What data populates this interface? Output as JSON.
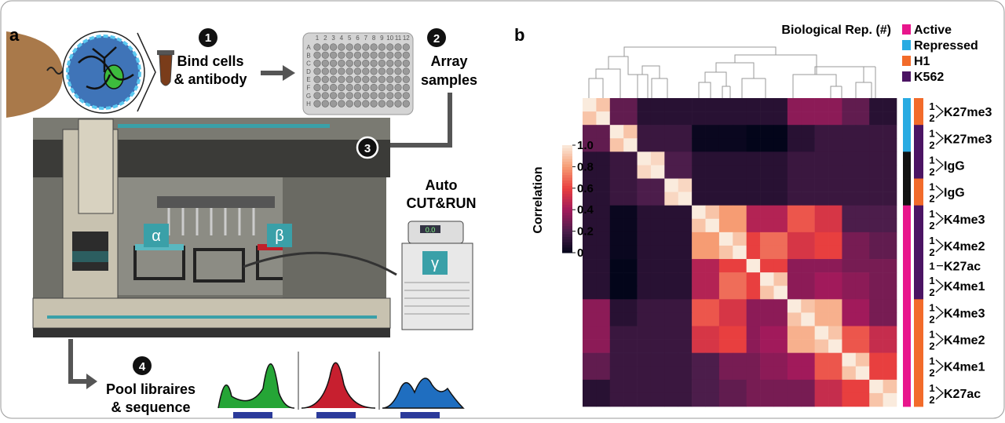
{
  "panel_a": {
    "label": "a",
    "step1": {
      "num": "1",
      "lines": [
        "Bind cells",
        "& antibody"
      ]
    },
    "step2": {
      "num": "2",
      "lines": [
        "Array",
        "samples"
      ]
    },
    "step3": {
      "num": "3",
      "lines": [
        "Auto",
        "CUT&RUN"
      ]
    },
    "step4": {
      "num": "4",
      "lines": [
        "Pool libraires",
        "& sequence"
      ]
    },
    "plate": {
      "columns": [
        "1",
        "2",
        "3",
        "4",
        "5",
        "6",
        "7",
        "8",
        "9",
        "10",
        "11",
        "12"
      ],
      "rows": [
        "A",
        "B",
        "C",
        "D",
        "E",
        "F",
        "G",
        "H"
      ]
    },
    "modules": [
      "α",
      "β",
      "γ"
    ],
    "display": "0.0"
  },
  "chart_data": {
    "type": "heatmap",
    "panel_label": "b",
    "legend_title": "Biological Rep. (#)",
    "colorbar_label": "Correlation",
    "clim": [
      0,
      1
    ],
    "cticks": [
      {
        "value": 1,
        "label": "1.0"
      },
      0.8,
      0.6,
      0.4,
      0.2,
      0
    ],
    "legend": [
      {
        "name": "Active",
        "color": "#e8168c"
      },
      {
        "name": "Repressed",
        "color": "#29abe2"
      },
      {
        "name": "H1",
        "color": "#f26b2a"
      },
      {
        "name": "K562",
        "color": "#4b1463"
      }
    ],
    "row_groups": [
      {
        "name": "K27me3",
        "reps": [
          "1",
          "2"
        ]
      },
      {
        "name": "K27me3",
        "reps": [
          "1",
          "2"
        ]
      },
      {
        "name": "IgG",
        "reps": [
          "1",
          "2"
        ]
      },
      {
        "name": "IgG",
        "reps": [
          "1",
          "2"
        ]
      },
      {
        "name": "K4me3",
        "reps": [
          "1",
          "2"
        ]
      },
      {
        "name": "K4me2",
        "reps": [
          "1",
          "2"
        ]
      },
      {
        "name": "K27ac",
        "reps": [
          "1"
        ]
      },
      {
        "name": "K4me1",
        "reps": [
          "1",
          "2"
        ]
      },
      {
        "name": "K4me3",
        "reps": [
          "1",
          "2"
        ]
      },
      {
        "name": "K4me2",
        "reps": [
          "1",
          "2"
        ]
      },
      {
        "name": "K4me1",
        "reps": [
          "1",
          "2"
        ]
      },
      {
        "name": "K27ac",
        "reps": [
          "1",
          "2"
        ]
      }
    ],
    "activity_track": [
      "Repressed",
      "Repressed",
      "Repressed",
      "Repressed",
      null,
      null,
      null,
      null,
      "Active",
      "Active",
      "Active",
      "Active",
      "Active",
      "Active",
      "Active",
      "Active",
      "Active",
      "Active",
      "Active",
      "Active",
      "Active",
      "Active",
      "Active"
    ],
    "cell_track": [
      "H1",
      "H1",
      "K562",
      "K562",
      "K562",
      "K562",
      "H1",
      "H1",
      "K562",
      "K562",
      "K562",
      "K562",
      "K562",
      "K562",
      "K562",
      "H1",
      "H1",
      "H1",
      "H1",
      "H1",
      "H1",
      "H1",
      "H1"
    ],
    "values": [
      [
        1,
        0.9,
        0.25,
        0.25,
        0.1,
        0.1,
        0.1,
        0.1,
        0.1,
        0.1,
        0.1,
        0.1,
        0.1,
        0.1,
        0.1,
        0.35,
        0.35,
        0.35,
        0.35,
        0.25,
        0.25,
        0.1,
        0.1
      ],
      [
        0.9,
        1,
        0.25,
        0.25,
        0.1,
        0.1,
        0.1,
        0.1,
        0.1,
        0.1,
        0.1,
        0.1,
        0.1,
        0.1,
        0.1,
        0.35,
        0.35,
        0.35,
        0.35,
        0.25,
        0.25,
        0.1,
        0.1
      ],
      [
        0.25,
        0.25,
        1,
        0.9,
        0.15,
        0.15,
        0.15,
        0.15,
        0.02,
        0.02,
        0.02,
        0.02,
        0,
        0,
        0,
        0.1,
        0.1,
        0.15,
        0.15,
        0.15,
        0.15,
        0.15,
        0.15
      ],
      [
        0.25,
        0.25,
        0.9,
        1,
        0.15,
        0.15,
        0.15,
        0.15,
        0.02,
        0.02,
        0.02,
        0.02,
        0,
        0,
        0,
        0.1,
        0.1,
        0.15,
        0.15,
        0.15,
        0.15,
        0.15,
        0.15
      ],
      [
        0.1,
        0.1,
        0.15,
        0.15,
        1,
        0.95,
        0.2,
        0.2,
        0.1,
        0.1,
        0.1,
        0.1,
        0.1,
        0.1,
        0.1,
        0.15,
        0.15,
        0.15,
        0.15,
        0.15,
        0.15,
        0.15,
        0.15
      ],
      [
        0.1,
        0.1,
        0.15,
        0.15,
        0.95,
        1,
        0.2,
        0.2,
        0.1,
        0.1,
        0.1,
        0.1,
        0.1,
        0.1,
        0.1,
        0.15,
        0.15,
        0.15,
        0.15,
        0.15,
        0.15,
        0.15,
        0.15
      ],
      [
        0.1,
        0.1,
        0.15,
        0.15,
        0.2,
        0.2,
        1,
        0.95,
        0.1,
        0.1,
        0.1,
        0.1,
        0.1,
        0.1,
        0.1,
        0.15,
        0.15,
        0.15,
        0.15,
        0.15,
        0.15,
        0.15,
        0.15
      ],
      [
        0.1,
        0.1,
        0.15,
        0.15,
        0.2,
        0.2,
        0.95,
        1,
        0.1,
        0.1,
        0.1,
        0.1,
        0.1,
        0.1,
        0.1,
        0.15,
        0.15,
        0.15,
        0.15,
        0.15,
        0.15,
        0.15,
        0.15
      ],
      [
        0.1,
        0.1,
        0.02,
        0.02,
        0.1,
        0.1,
        0.1,
        0.1,
        1,
        0.9,
        0.8,
        0.8,
        0.45,
        0.45,
        0.45,
        0.65,
        0.65,
        0.55,
        0.55,
        0.2,
        0.2,
        0.2,
        0.2
      ],
      [
        0.1,
        0.1,
        0.02,
        0.02,
        0.1,
        0.1,
        0.1,
        0.1,
        0.9,
        1,
        0.8,
        0.8,
        0.45,
        0.45,
        0.45,
        0.65,
        0.65,
        0.55,
        0.55,
        0.2,
        0.2,
        0.2,
        0.2
      ],
      [
        0.1,
        0.1,
        0.02,
        0.02,
        0.1,
        0.1,
        0.1,
        0.1,
        0.8,
        0.8,
        1,
        0.9,
        0.6,
        0.7,
        0.7,
        0.55,
        0.55,
        0.6,
        0.6,
        0.3,
        0.3,
        0.25,
        0.25
      ],
      [
        0.1,
        0.1,
        0.02,
        0.02,
        0.1,
        0.1,
        0.1,
        0.1,
        0.8,
        0.8,
        0.9,
        1,
        0.6,
        0.7,
        0.7,
        0.55,
        0.55,
        0.6,
        0.6,
        0.3,
        0.3,
        0.25,
        0.25
      ],
      [
        0.1,
        0.1,
        0,
        0,
        0.1,
        0.1,
        0.1,
        0.1,
        0.45,
        0.45,
        0.6,
        0.6,
        1,
        0.6,
        0.6,
        0.35,
        0.35,
        0.35,
        0.35,
        0.3,
        0.3,
        0.3,
        0.3
      ],
      [
        0.1,
        0.1,
        0,
        0,
        0.1,
        0.1,
        0.1,
        0.1,
        0.45,
        0.45,
        0.7,
        0.7,
        0.6,
        1,
        0.9,
        0.35,
        0.35,
        0.4,
        0.4,
        0.35,
        0.35,
        0.3,
        0.3
      ],
      [
        0.1,
        0.1,
        0,
        0,
        0.1,
        0.1,
        0.1,
        0.1,
        0.45,
        0.45,
        0.7,
        0.7,
        0.6,
        0.9,
        1,
        0.35,
        0.35,
        0.4,
        0.4,
        0.35,
        0.35,
        0.3,
        0.3
      ],
      [
        0.35,
        0.35,
        0.1,
        0.1,
        0.15,
        0.15,
        0.15,
        0.15,
        0.65,
        0.65,
        0.55,
        0.55,
        0.35,
        0.35,
        0.35,
        1,
        0.9,
        0.85,
        0.85,
        0.4,
        0.4,
        0.3,
        0.3
      ],
      [
        0.35,
        0.35,
        0.1,
        0.1,
        0.15,
        0.15,
        0.15,
        0.15,
        0.65,
        0.65,
        0.55,
        0.55,
        0.35,
        0.35,
        0.35,
        0.9,
        1,
        0.85,
        0.85,
        0.4,
        0.4,
        0.3,
        0.3
      ],
      [
        0.35,
        0.35,
        0.15,
        0.15,
        0.15,
        0.15,
        0.15,
        0.15,
        0.55,
        0.55,
        0.6,
        0.6,
        0.35,
        0.4,
        0.4,
        0.85,
        0.85,
        1,
        0.9,
        0.65,
        0.65,
        0.5,
        0.5
      ],
      [
        0.35,
        0.35,
        0.15,
        0.15,
        0.15,
        0.15,
        0.15,
        0.15,
        0.55,
        0.55,
        0.6,
        0.6,
        0.35,
        0.4,
        0.4,
        0.85,
        0.85,
        0.9,
        1,
        0.65,
        0.65,
        0.5,
        0.5
      ],
      [
        0.25,
        0.25,
        0.15,
        0.15,
        0.15,
        0.15,
        0.15,
        0.15,
        0.2,
        0.2,
        0.3,
        0.3,
        0.3,
        0.35,
        0.35,
        0.4,
        0.4,
        0.65,
        0.65,
        1,
        0.9,
        0.6,
        0.6
      ],
      [
        0.25,
        0.25,
        0.15,
        0.15,
        0.15,
        0.15,
        0.15,
        0.15,
        0.2,
        0.2,
        0.3,
        0.3,
        0.3,
        0.35,
        0.35,
        0.4,
        0.4,
        0.65,
        0.65,
        0.9,
        1,
        0.6,
        0.6
      ],
      [
        0.1,
        0.1,
        0.15,
        0.15,
        0.15,
        0.15,
        0.15,
        0.15,
        0.2,
        0.2,
        0.25,
        0.25,
        0.3,
        0.3,
        0.3,
        0.3,
        0.3,
        0.5,
        0.5,
        0.6,
        0.6,
        1,
        0.9
      ],
      [
        0.1,
        0.1,
        0.15,
        0.15,
        0.15,
        0.15,
        0.15,
        0.15,
        0.2,
        0.2,
        0.25,
        0.25,
        0.3,
        0.3,
        0.3,
        0.3,
        0.3,
        0.5,
        0.5,
        0.6,
        0.6,
        0.9,
        1
      ]
    ]
  }
}
